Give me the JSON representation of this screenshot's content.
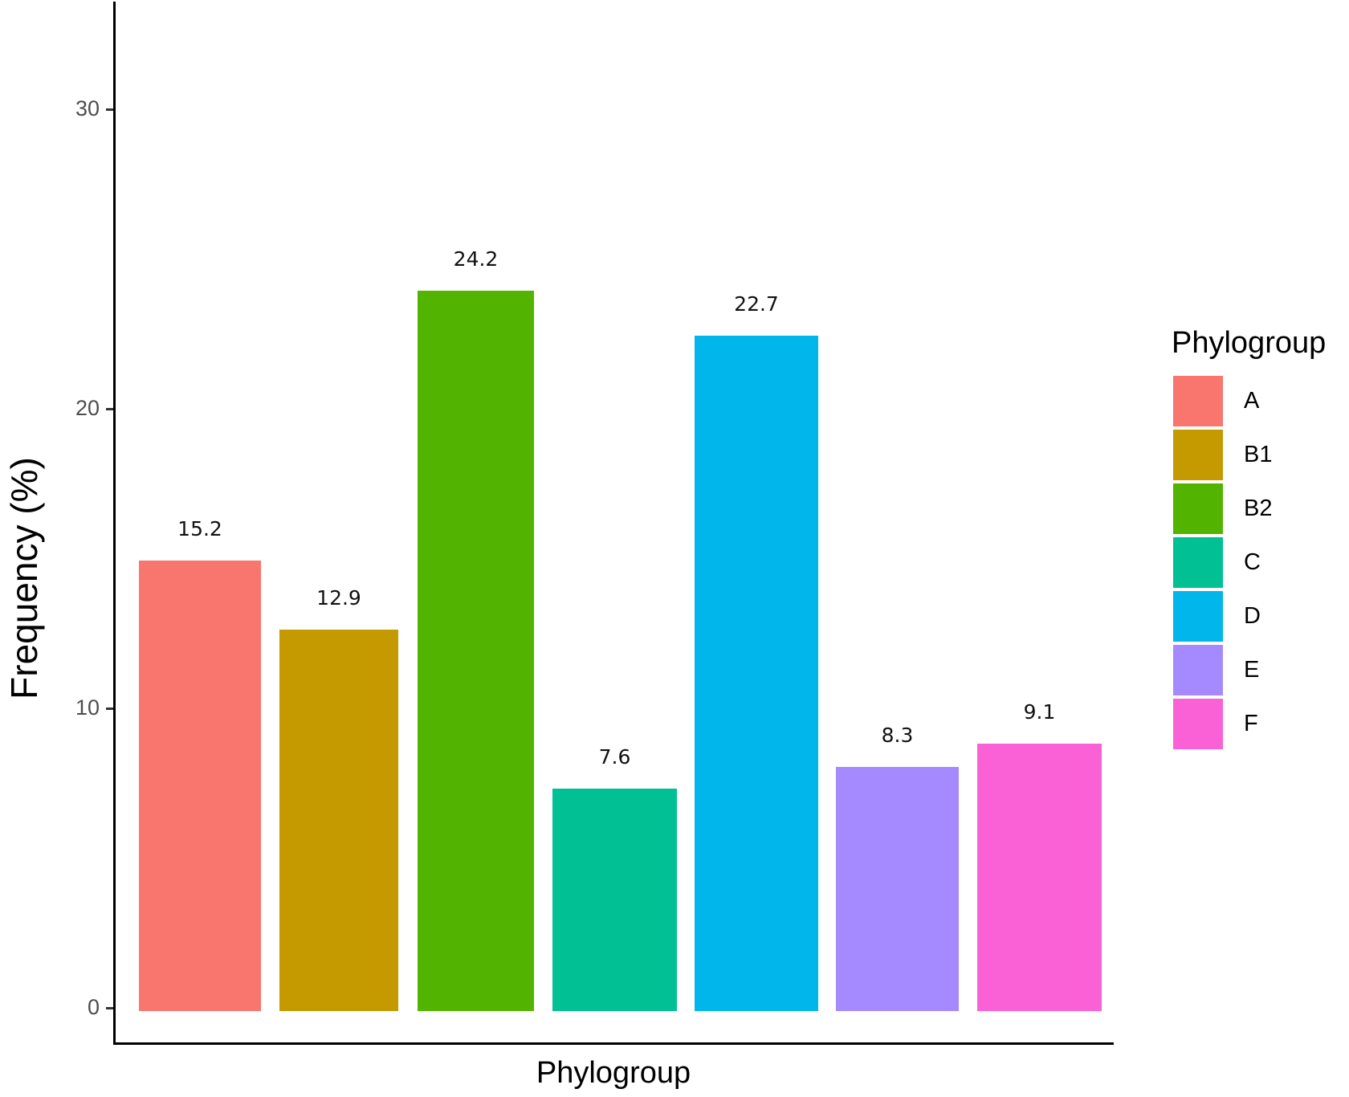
{
  "chart_data": {
    "type": "bar",
    "title": "",
    "xlabel": "Phylogroup",
    "ylabel": "Frequency (%)",
    "ylim": [
      -2.5,
      33.5
    ],
    "yticks": [
      0,
      10,
      20,
      30
    ],
    "categories": [
      "A",
      "B1",
      "B2",
      "C",
      "D",
      "E",
      "F"
    ],
    "values": [
      15.2,
      12.9,
      24.2,
      7.6,
      22.7,
      8.3,
      9.1
    ],
    "value_labels": [
      "15.2",
      "12.9",
      "24.2",
      "7.6",
      "22.7",
      "8.3",
      "9.1"
    ],
    "colors": [
      "#F8766D",
      "#C49A00",
      "#53B400",
      "#00C094",
      "#00B6EB",
      "#A58AFF",
      "#FB61D7"
    ],
    "grid": false,
    "legend": {
      "title": "Phylogroup",
      "position": "right",
      "entries": [
        "A",
        "B1",
        "B2",
        "C",
        "D",
        "E",
        "F"
      ]
    }
  },
  "axes": {
    "x_title": "Phylogroup",
    "y_title": "Frequency (%)",
    "y_tick_labels": [
      "0",
      "10",
      "20",
      "30"
    ]
  },
  "legend": {
    "title": "Phylogroup",
    "items": [
      {
        "label": "A",
        "color": "#F8766D"
      },
      {
        "label": "B1",
        "color": "#C49A00"
      },
      {
        "label": "B2",
        "color": "#53B400"
      },
      {
        "label": "C",
        "color": "#00C094"
      },
      {
        "label": "D",
        "color": "#00B6EB"
      },
      {
        "label": "E",
        "color": "#A58AFF"
      },
      {
        "label": "F",
        "color": "#FB61D7"
      }
    ]
  }
}
